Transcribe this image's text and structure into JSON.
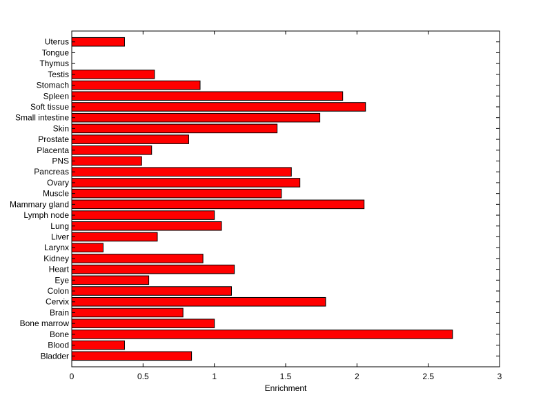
{
  "chart_data": {
    "type": "bar",
    "orientation": "horizontal",
    "title": "",
    "xlabel": "Enrichment",
    "ylabel": "",
    "xlim": [
      0,
      3
    ],
    "xticks": [
      "0",
      "0.5",
      "1",
      "1.5",
      "2",
      "2.5",
      "3"
    ],
    "grid": false,
    "legend": "none",
    "bar_color": "#ff0000",
    "bar_edge_color": "#000000",
    "categories": [
      "Bladder",
      "Blood",
      "Bone",
      "Bone marrow",
      "Brain",
      "Cervix",
      "Colon",
      "Eye",
      "Heart",
      "Kidney",
      "Larynx",
      "Liver",
      "Lung",
      "Lymph node",
      "Mammary gland",
      "Muscle",
      "Ovary",
      "Pancreas",
      "PNS",
      "Placenta",
      "Prostate",
      "Skin",
      "Small intestine",
      "Soft tissue",
      "Spleen",
      "Stomach",
      "Testis",
      "Thymus",
      "Tongue",
      "Uterus"
    ],
    "values": [
      0.84,
      0.37,
      2.67,
      1.0,
      0.78,
      1.78,
      1.12,
      0.54,
      1.14,
      0.92,
      0.22,
      0.6,
      1.05,
      1.0,
      2.05,
      1.47,
      1.6,
      1.54,
      0.49,
      0.56,
      0.82,
      1.44,
      1.74,
      2.06,
      1.9,
      0.9,
      0.58,
      0,
      0,
      0.37
    ]
  }
}
